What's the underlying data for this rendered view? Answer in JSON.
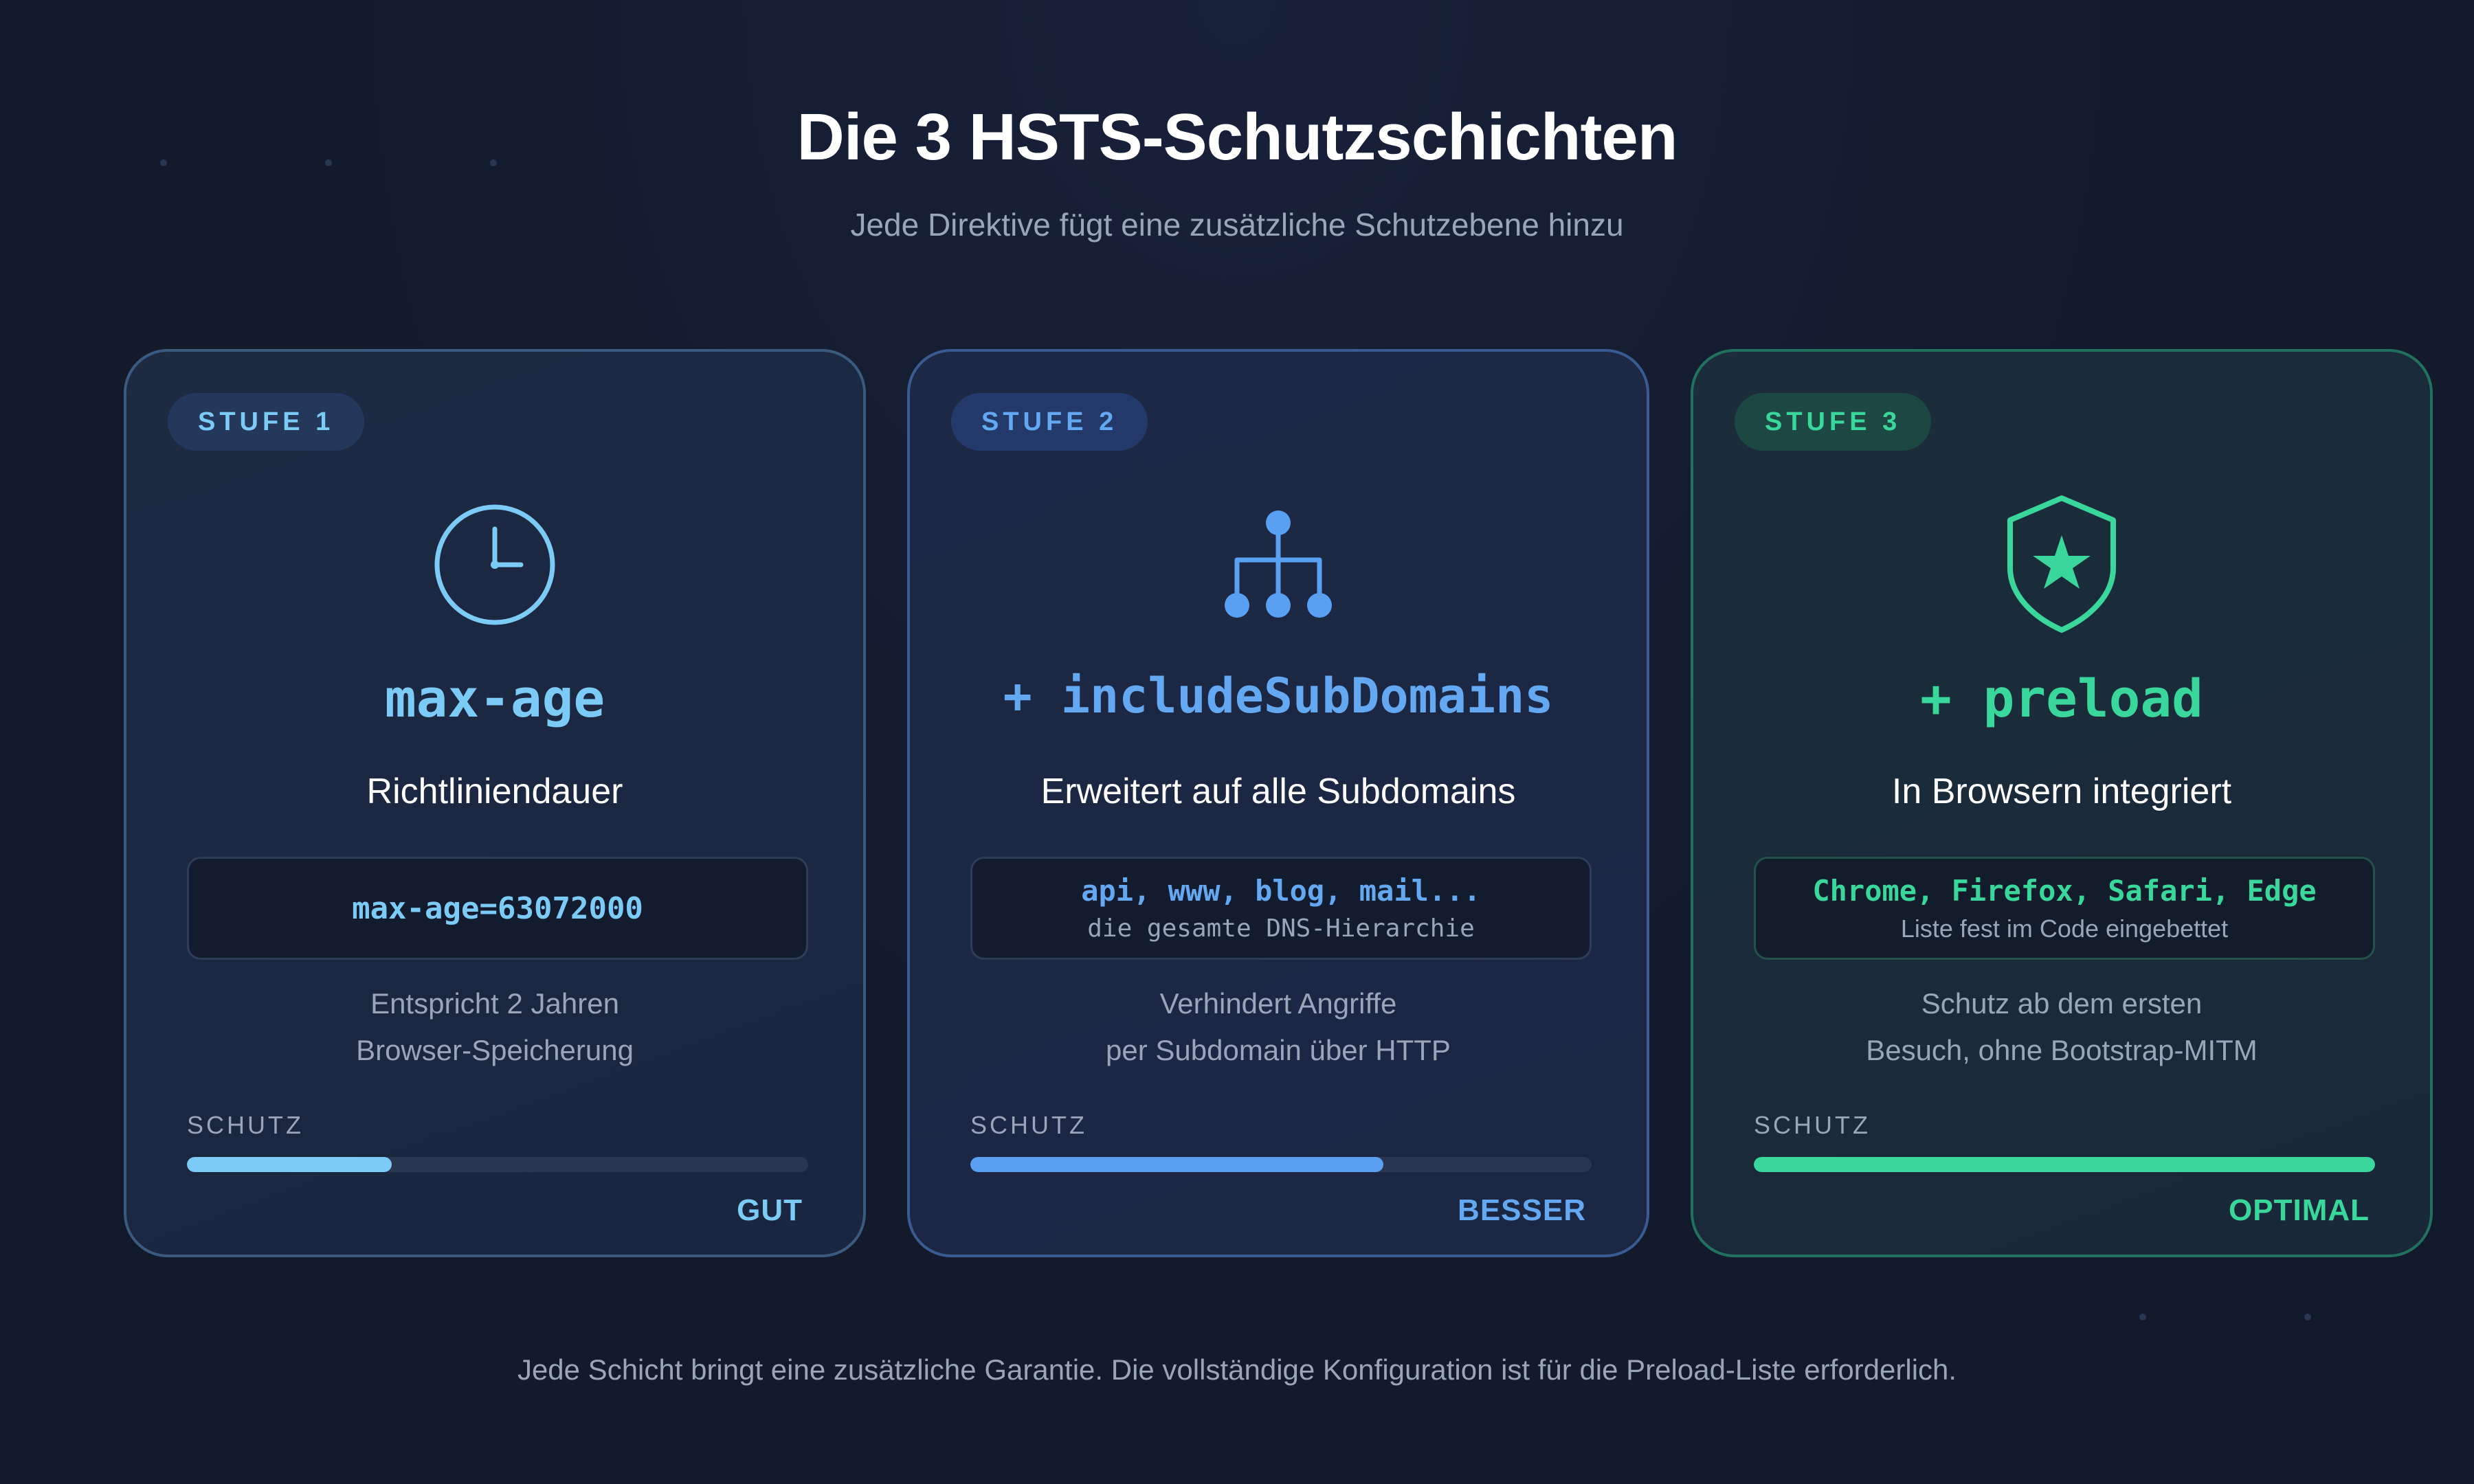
{
  "header": {
    "title": "Die 3 HSTS-Schutzschichten",
    "subtitle": "Jede Direktive fügt eine zusätzliche Schutzebene hinzu"
  },
  "cards": [
    {
      "badge": "STUFE 1",
      "icon": "clock-icon",
      "directive": "max-age",
      "heading": "Richtliniendauer",
      "code_main": "max-age=63072000",
      "code_sub": "",
      "desc_line1": "Entspricht 2 Jahren",
      "desc_line2": "Browser-Speicherung",
      "protection_label": "SCHUTZ",
      "protection_level": 0.33,
      "level_label": "GUT",
      "accent": "#7ccbf7"
    },
    {
      "badge": "STUFE 2",
      "icon": "hierarchy-icon",
      "directive": "+ includeSubDomains",
      "heading": "Erweitert auf alle Subdomains",
      "code_main": "api, www, blog, mail...",
      "code_sub": "die gesamte DNS-Hierarchie",
      "desc_line1": "Verhindert Angriffe",
      "desc_line2": "per Subdomain über HTTP",
      "protection_label": "SCHUTZ",
      "protection_level": 0.665,
      "level_label": "BESSER",
      "accent": "#64a8f2"
    },
    {
      "badge": "STUFE 3",
      "icon": "shield-star-icon",
      "directive": "+ preload",
      "heading": "In Browsern integriert",
      "code_main": "Chrome, Firefox, Safari, Edge",
      "code_sub": "Liste fest im Code eingebettet",
      "desc_line1": "Schutz ab dem ersten",
      "desc_line2": "Besuch, ohne Bootstrap-MITM",
      "protection_label": "SCHUTZ",
      "protection_level": 1.0,
      "level_label": "OPTIMAL",
      "accent": "#3ad79c"
    }
  ],
  "footnote": "Jede Schicht bringt eine zusätzliche Garantie. Die vollständige Konfiguration ist für die Preload-Liste erforderlich."
}
